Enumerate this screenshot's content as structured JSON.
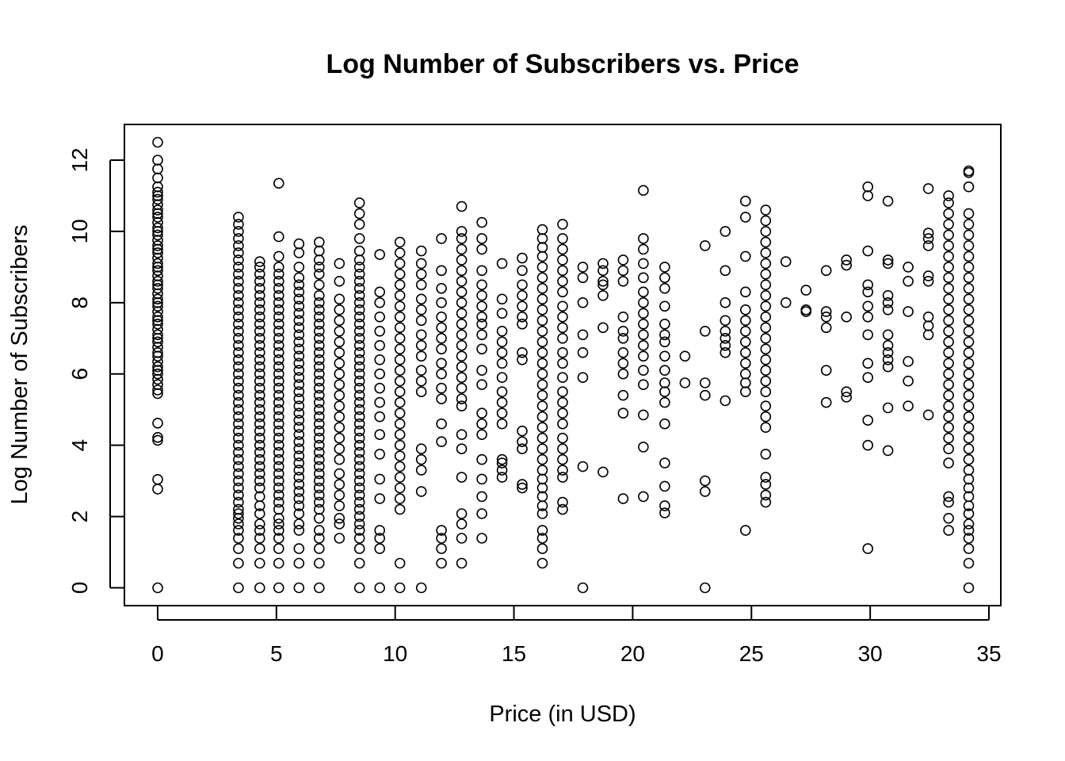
{
  "chart_data": {
    "type": "scatter",
    "title": "Log Number of Subscribers vs. Price",
    "xlabel": "Price (in USD)",
    "ylabel": "Log Number of Subscribers",
    "xlim": [
      -1.4,
      35.5
    ],
    "ylim": [
      -0.5,
      13.0
    ],
    "x_ticks": [
      0,
      5,
      10,
      15,
      20,
      25,
      30,
      35
    ],
    "y_ticks": [
      0,
      2,
      4,
      6,
      8,
      10,
      12
    ],
    "grid": false,
    "legend": "none",
    "marker": "open-circle",
    "series": [
      {
        "columns": [
          {
            "x": 0,
            "y": [
              0.0,
              2.77,
              3.04,
              4.14,
              4.22,
              4.62,
              5.45,
              5.55,
              5.7,
              5.85,
              6.0,
              6.1,
              6.2,
              6.35,
              6.5,
              6.6,
              6.75,
              6.9,
              7.0,
              7.1,
              7.25,
              7.4,
              7.5,
              7.6,
              7.75,
              7.9,
              8.0,
              8.1,
              8.25,
              8.4,
              8.5,
              8.6,
              8.75,
              8.9,
              9.0,
              9.1,
              9.25,
              9.4,
              9.5,
              9.6,
              9.75,
              9.9,
              10.0,
              10.1,
              10.25,
              10.4,
              10.5,
              10.6,
              10.75,
              10.9,
              11.0,
              11.1,
              11.25,
              11.5,
              11.75,
              12.0,
              12.5
            ]
          },
          {
            "x": 3.4,
            "y": [
              0.0,
              0.69,
              1.1,
              1.39,
              1.61,
              1.79,
              1.95,
              2.08,
              2.2,
              2.4,
              2.6,
              2.8,
              3.0,
              3.2,
              3.4,
              3.6,
              3.8,
              4.0,
              4.2,
              4.4,
              4.6,
              4.8,
              5.0,
              5.2,
              5.4,
              5.6,
              5.8,
              6.0,
              6.2,
              6.4,
              6.6,
              6.8,
              7.0,
              7.2,
              7.4,
              7.6,
              7.8,
              8.0,
              8.2,
              8.4,
              8.6,
              8.8,
              9.0,
              9.2,
              9.4,
              9.6,
              9.8,
              10.0,
              10.2,
              10.4
            ]
          },
          {
            "x": 4.3,
            "y": [
              0.0,
              0.69,
              1.1,
              1.39,
              1.61,
              1.79,
              2.08,
              2.3,
              2.56,
              2.8,
              3.0,
              3.2,
              3.4,
              3.6,
              3.8,
              4.0,
              4.2,
              4.4,
              4.6,
              4.8,
              5.0,
              5.2,
              5.4,
              5.6,
              5.8,
              6.0,
              6.2,
              6.4,
              6.6,
              6.8,
              7.0,
              7.2,
              7.4,
              7.6,
              7.8,
              8.0,
              8.2,
              8.4,
              8.6,
              8.8,
              9.0,
              9.15
            ]
          },
          {
            "x": 5.1,
            "y": [
              0.0,
              0.69,
              1.1,
              1.39,
              1.61,
              1.79,
              1.95,
              2.2,
              2.4,
              2.6,
              2.8,
              3.0,
              3.2,
              3.4,
              3.6,
              3.8,
              4.0,
              4.2,
              4.4,
              4.6,
              4.8,
              5.0,
              5.2,
              5.4,
              5.6,
              5.8,
              6.0,
              6.2,
              6.4,
              6.6,
              6.8,
              7.0,
              7.2,
              7.4,
              7.6,
              7.8,
              8.0,
              8.2,
              8.4,
              8.6,
              8.8,
              9.0,
              9.3,
              9.85,
              11.35
            ]
          },
          {
            "x": 5.95,
            "y": [
              0.0,
              0.69,
              1.1,
              1.61,
              1.79,
              2.08,
              2.3,
              2.5,
              2.7,
              2.9,
              3.1,
              3.3,
              3.5,
              3.7,
              3.9,
              4.1,
              4.3,
              4.5,
              4.7,
              4.9,
              5.1,
              5.3,
              5.5,
              5.7,
              5.9,
              6.1,
              6.3,
              6.5,
              6.7,
              6.9,
              7.1,
              7.3,
              7.5,
              7.7,
              7.9,
              8.1,
              8.3,
              8.5,
              8.7,
              9.0,
              9.4,
              9.65
            ]
          },
          {
            "x": 6.8,
            "y": [
              0.0,
              0.69,
              1.1,
              1.39,
              1.61,
              1.95,
              2.2,
              2.4,
              2.6,
              2.8,
              3.0,
              3.2,
              3.4,
              3.6,
              3.8,
              4.0,
              4.2,
              4.4,
              4.6,
              4.8,
              5.0,
              5.2,
              5.4,
              5.6,
              5.8,
              6.0,
              6.2,
              6.4,
              6.6,
              6.8,
              7.0,
              7.2,
              7.4,
              7.6,
              7.8,
              8.0,
              8.2,
              8.5,
              8.8,
              9.0,
              9.2,
              9.45,
              9.7
            ]
          },
          {
            "x": 7.65,
            "y": [
              1.39,
              1.79,
              1.95,
              2.3,
              2.6,
              2.9,
              3.2,
              3.6,
              3.9,
              4.2,
              4.5,
              4.8,
              5.1,
              5.4,
              5.7,
              6.0,
              6.3,
              6.6,
              6.9,
              7.2,
              7.5,
              7.8,
              8.1,
              8.6,
              9.1
            ]
          },
          {
            "x": 8.5,
            "y": [
              0.0,
              0.69,
              1.1,
              1.39,
              1.61,
              1.79,
              2.0,
              2.2,
              2.4,
              2.6,
              2.8,
              3.0,
              3.2,
              3.4,
              3.6,
              3.8,
              4.0,
              4.2,
              4.4,
              4.6,
              4.8,
              5.0,
              5.2,
              5.4,
              5.6,
              5.8,
              6.0,
              6.2,
              6.4,
              6.6,
              6.8,
              7.0,
              7.2,
              7.4,
              7.6,
              7.8,
              8.0,
              8.2,
              8.4,
              8.6,
              8.8,
              9.0,
              9.2,
              9.45,
              9.8,
              10.2,
              10.5,
              10.8
            ]
          },
          {
            "x": 9.35,
            "y": [
              0.0,
              1.1,
              1.39,
              1.61,
              2.5,
              3.05,
              3.75,
              4.3,
              4.8,
              5.2,
              5.6,
              6.0,
              6.4,
              6.8,
              7.2,
              7.6,
              8.0,
              8.3,
              9.35
            ]
          },
          {
            "x": 10.2,
            "y": [
              0.0,
              0.69,
              2.2,
              2.5,
              2.8,
              3.1,
              3.4,
              3.7,
              4.0,
              4.3,
              4.6,
              4.9,
              5.2,
              5.5,
              5.8,
              6.1,
              6.4,
              6.7,
              7.0,
              7.3,
              7.6,
              7.9,
              8.2,
              8.5,
              8.8,
              9.1,
              9.4,
              9.7
            ]
          },
          {
            "x": 11.1,
            "y": [
              0.0,
              2.7,
              3.3,
              3.6,
              3.9,
              5.5,
              5.8,
              6.1,
              6.5,
              6.8,
              7.1,
              7.5,
              7.8,
              8.1,
              8.5,
              8.8,
              9.1,
              9.45
            ]
          },
          {
            "x": 11.95,
            "y": [
              0.69,
              1.1,
              1.39,
              1.61,
              4.1,
              4.6,
              5.3,
              5.6,
              6.0,
              6.3,
              6.7,
              7.0,
              7.3,
              7.6,
              8.0,
              8.4,
              8.9,
              9.8
            ]
          },
          {
            "x": 12.8,
            "y": [
              0.69,
              1.39,
              1.79,
              2.08,
              3.1,
              3.9,
              4.3,
              5.1,
              5.3,
              5.6,
              5.9,
              6.2,
              6.5,
              6.8,
              7.1,
              7.4,
              7.7,
              8.0,
              8.3,
              8.6,
              8.9,
              9.2,
              9.5,
              9.8,
              10.0,
              10.7
            ]
          },
          {
            "x": 13.65,
            "y": [
              1.39,
              2.08,
              2.56,
              3.05,
              3.6,
              4.3,
              4.6,
              4.9,
              5.7,
              6.1,
              6.7,
              7.1,
              7.4,
              7.6,
              7.9,
              8.2,
              8.5,
              8.9,
              9.5,
              9.8,
              10.25
            ]
          },
          {
            "x": 14.5,
            "y": [
              3.1,
              3.3,
              3.5,
              3.6,
              4.6,
              4.9,
              5.2,
              5.5,
              5.9,
              6.3,
              6.6,
              6.9,
              7.2,
              7.7,
              8.1,
              9.1
            ]
          },
          {
            "x": 15.35,
            "y": [
              2.8,
              2.9,
              3.9,
              4.1,
              4.4,
              6.4,
              6.6,
              7.4,
              7.6,
              7.9,
              8.2,
              8.5,
              8.9,
              9.25
            ]
          },
          {
            "x": 16.2,
            "y": [
              0.69,
              1.1,
              1.39,
              1.61,
              2.08,
              2.3,
              2.56,
              2.8,
              3.05,
              3.3,
              3.6,
              3.9,
              4.2,
              4.5,
              4.8,
              5.1,
              5.4,
              5.7,
              6.0,
              6.3,
              6.6,
              6.9,
              7.2,
              7.5,
              7.8,
              8.1,
              8.4,
              8.7,
              9.0,
              9.3,
              9.55,
              9.8,
              10.05
            ]
          },
          {
            "x": 17.05,
            "y": [
              2.2,
              2.4,
              3.1,
              3.3,
              3.6,
              3.9,
              4.2,
              4.6,
              4.9,
              5.2,
              5.5,
              5.9,
              6.3,
              6.6,
              7.0,
              7.3,
              7.6,
              7.9,
              8.3,
              8.6,
              8.9,
              9.2,
              9.5,
              9.8,
              10.2
            ]
          },
          {
            "x": 17.9,
            "y": [
              0.0,
              3.4,
              5.9,
              6.6,
              7.1,
              8.0,
              8.7,
              9.0
            ]
          },
          {
            "x": 18.75,
            "y": [
              3.25,
              7.3,
              8.2,
              8.5,
              8.6,
              8.9,
              9.1
            ]
          },
          {
            "x": 19.6,
            "y": [
              2.5,
              4.9,
              5.4,
              6.0,
              6.3,
              6.6,
              7.0,
              7.2,
              7.6,
              8.6,
              8.9,
              9.2
            ]
          },
          {
            "x": 20.45,
            "y": [
              2.56,
              3.95,
              4.85,
              5.7,
              6.1,
              6.5,
              6.8,
              7.1,
              7.4,
              7.7,
              8.0,
              8.3,
              8.7,
              9.1,
              9.5,
              9.8,
              11.15
            ]
          },
          {
            "x": 21.35,
            "y": [
              2.1,
              2.3,
              2.85,
              3.5,
              4.6,
              5.2,
              5.5,
              5.75,
              6.1,
              6.5,
              6.9,
              7.1,
              7.4,
              7.9,
              8.4,
              8.7,
              9.0
            ]
          },
          {
            "x": 22.2,
            "y": [
              5.75,
              6.5
            ]
          },
          {
            "x": 23.05,
            "y": [
              0.0,
              2.7,
              3.0,
              5.4,
              5.75,
              7.2,
              9.6
            ]
          },
          {
            "x": 23.9,
            "y": [
              5.25,
              6.6,
              6.8,
              7.0,
              7.2,
              7.5,
              8.0,
              8.9,
              10.0
            ]
          },
          {
            "x": 24.75,
            "y": [
              1.61,
              5.5,
              5.75,
              6.0,
              6.3,
              6.6,
              6.9,
              7.2,
              7.5,
              7.8,
              8.3,
              9.3,
              10.4,
              10.85
            ]
          },
          {
            "x": 25.6,
            "y": [
              2.4,
              2.6,
              2.9,
              3.1,
              3.75,
              4.5,
              4.8,
              5.1,
              5.5,
              5.8,
              6.1,
              6.4,
              6.7,
              7.0,
              7.3,
              7.6,
              7.9,
              8.2,
              8.5,
              8.8,
              9.1,
              9.4,
              9.7,
              10.0,
              10.3,
              10.6
            ]
          },
          {
            "x": 26.45,
            "y": [
              8.0,
              9.15
            ]
          },
          {
            "x": 27.3,
            "y": [
              7.75,
              7.8,
              8.35
            ]
          },
          {
            "x": 28.15,
            "y": [
              5.2,
              6.1,
              7.3,
              7.6,
              7.75,
              8.9
            ]
          },
          {
            "x": 29.0,
            "y": [
              5.35,
              5.5,
              7.6,
              9.05,
              9.2
            ]
          },
          {
            "x": 29.9,
            "y": [
              1.1,
              4.0,
              4.7,
              5.9,
              6.3,
              7.1,
              7.6,
              7.9,
              8.3,
              8.5,
              9.45,
              11.0,
              11.25
            ]
          },
          {
            "x": 30.75,
            "y": [
              3.85,
              5.05,
              6.2,
              6.4,
              6.6,
              6.8,
              7.1,
              7.8,
              8.0,
              8.2,
              9.1,
              9.2,
              10.85
            ]
          },
          {
            "x": 31.6,
            "y": [
              5.1,
              5.8,
              6.35,
              7.75,
              8.6,
              9.0
            ]
          },
          {
            "x": 32.45,
            "y": [
              4.85,
              7.1,
              7.35,
              7.6,
              8.6,
              8.75,
              9.6,
              9.8,
              9.95,
              11.2
            ]
          },
          {
            "x": 33.3,
            "y": [
              1.61,
              1.95,
              2.4,
              2.56,
              3.5,
              3.9,
              4.2,
              4.5,
              4.8,
              5.1,
              5.4,
              5.7,
              6.0,
              6.3,
              6.6,
              6.9,
              7.2,
              7.5,
              7.8,
              8.1,
              8.4,
              8.7,
              9.0,
              9.3,
              9.6,
              9.9,
              10.2,
              10.5,
              10.8,
              11.0
            ]
          },
          {
            "x": 34.15,
            "y": [
              0.0,
              0.69,
              1.1,
              1.39,
              1.61,
              1.79,
              2.08,
              2.3,
              2.56,
              2.8,
              3.05,
              3.3,
              3.6,
              3.9,
              4.2,
              4.5,
              4.8,
              5.1,
              5.4,
              5.7,
              6.0,
              6.3,
              6.6,
              6.9,
              7.2,
              7.5,
              7.8,
              8.1,
              8.4,
              8.7,
              9.0,
              9.3,
              9.6,
              9.9,
              10.2,
              10.5,
              11.25,
              11.65,
              11.7
            ]
          }
        ]
      }
    ]
  }
}
